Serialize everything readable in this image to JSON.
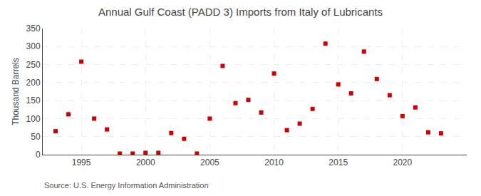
{
  "chart_data": {
    "type": "scatter",
    "title": "Annual Gulf Coast (PADD 3) Imports from Italy of Lubricants",
    "ylabel": "Thousand Barrels",
    "annotations": [
      "Source: U.S. Energy Information Administration"
    ],
    "x": [
      1993,
      1994,
      1995,
      1996,
      1997,
      1998,
      1999,
      2000,
      2001,
      2002,
      2003,
      2004,
      2005,
      2006,
      2007,
      2008,
      2009,
      2010,
      2011,
      2012,
      2013,
      2014,
      2015,
      2016,
      2017,
      2018,
      2019,
      2020,
      2021,
      2022,
      2023
    ],
    "values": [
      65,
      112,
      258,
      100,
      70,
      3,
      3,
      5,
      5,
      60,
      44,
      3,
      100,
      246,
      143,
      152,
      117,
      225,
      68,
      86,
      127,
      308,
      195,
      170,
      286,
      210,
      165,
      107,
      131,
      62,
      59
    ],
    "color": "#cc0000",
    "marker": "square",
    "xlim": [
      1992,
      2025
    ],
    "xticks": [
      1995,
      2000,
      2005,
      2010,
      2015,
      2020
    ],
    "ylim": [
      0,
      350
    ],
    "yticks": [
      0,
      50,
      100,
      150,
      200,
      250,
      300,
      350
    ],
    "grid": true
  }
}
